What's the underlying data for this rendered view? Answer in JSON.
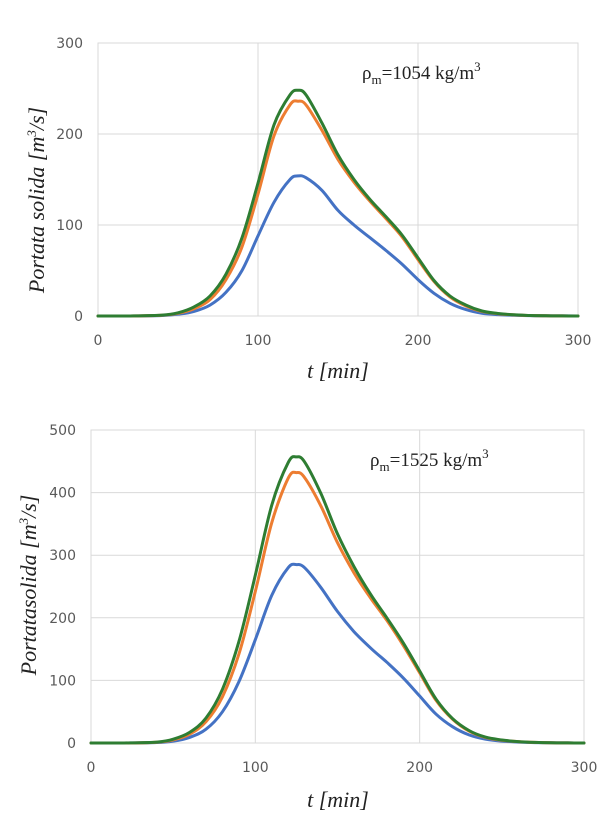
{
  "chart_data": [
    {
      "type": "line",
      "annotation": {
        "rho": "ρ",
        "sub": "m",
        "text": "=1054 kg/m",
        "sup": "3"
      },
      "xlabel": "t [min]",
      "ylabel": {
        "main": "Portata solida [m",
        "sup": "3",
        "tail": "/s]"
      },
      "xlim": [
        0,
        300
      ],
      "ylim": [
        0,
        300
      ],
      "xticks": [
        "0",
        "100",
        "200",
        "300"
      ],
      "yticks": [
        "0",
        "100",
        "200",
        "300"
      ],
      "grid": true,
      "legend": "none",
      "x": [
        0,
        20,
        40,
        50,
        60,
        70,
        80,
        90,
        100,
        110,
        120,
        125,
        130,
        140,
        150,
        160,
        170,
        180,
        190,
        200,
        210,
        220,
        230,
        240,
        250,
        260,
        270,
        280,
        290,
        300
      ],
      "series": [
        {
          "name": "blue",
          "color": "#4472c4",
          "values": [
            0,
            0,
            0.5,
            2,
            5,
            12,
            26,
            50,
            88,
            125,
            150,
            154,
            152,
            138,
            116,
            100,
            86,
            72,
            57,
            40,
            25,
            14,
            7,
            3,
            1.5,
            0.8,
            0.4,
            0.2,
            0.1,
            0
          ]
        },
        {
          "name": "orange",
          "color": "#ed7d31",
          "values": [
            0,
            0,
            0.8,
            3,
            8,
            18,
            40,
            76,
            134,
            198,
            232,
            236,
            232,
            204,
            172,
            147,
            126,
            107,
            87,
            62,
            38,
            21,
            11,
            5,
            2.5,
            1.2,
            0.6,
            0.3,
            0.1,
            0
          ]
        },
        {
          "name": "green",
          "color": "#2e7d32",
          "values": [
            0,
            0,
            1,
            3.5,
            10,
            22,
            46,
            86,
            146,
            210,
            243,
            248,
            243,
            212,
            177,
            150,
            128,
            109,
            89,
            64,
            39,
            22,
            12,
            5.5,
            2.8,
            1.3,
            0.6,
            0.3,
            0.1,
            0
          ]
        }
      ]
    },
    {
      "type": "line",
      "annotation": {
        "rho": "ρ",
        "sub": "m",
        "text": "=1525 kg/m",
        "sup": "3"
      },
      "xlabel": "t [min]",
      "ylabel": {
        "main": "Portatasolida [m",
        "sup": "3",
        "tail": "/s]"
      },
      "xlim": [
        0,
        300
      ],
      "ylim": [
        0,
        500
      ],
      "xticks": [
        "0",
        "100",
        "200",
        "300"
      ],
      "yticks": [
        "0",
        "100",
        "200",
        "300",
        "400",
        "500"
      ],
      "grid": true,
      "legend": "none",
      "x": [
        0,
        20,
        40,
        50,
        60,
        70,
        80,
        90,
        100,
        110,
        120,
        125,
        130,
        140,
        150,
        160,
        170,
        180,
        190,
        200,
        210,
        220,
        230,
        240,
        250,
        260,
        270,
        280,
        290,
        300
      ],
      "series": [
        {
          "name": "blue",
          "color": "#4472c4",
          "values": [
            0,
            0,
            0.8,
            3,
            9,
            22,
            50,
            98,
            165,
            236,
            280,
            285,
            280,
            248,
            210,
            178,
            152,
            129,
            104,
            75,
            46,
            26,
            13,
            6,
            3,
            1.5,
            0.7,
            0.3,
            0.1,
            0
          ]
        },
        {
          "name": "orange",
          "color": "#ed7d31",
          "values": [
            0,
            0,
            1.2,
            5,
            14,
            34,
            74,
            142,
            242,
            352,
            423,
            432,
            424,
            378,
            320,
            272,
            232,
            196,
            156,
            112,
            68,
            38,
            19,
            9,
            4.5,
            2.2,
            1,
            0.4,
            0.1,
            0
          ]
        },
        {
          "name": "green",
          "color": "#2e7d32",
          "values": [
            0,
            0,
            1.5,
            6,
            17,
            40,
            86,
            162,
            268,
            380,
            448,
            457,
            449,
            398,
            334,
            282,
            238,
            200,
            160,
            115,
            70,
            39,
            20,
            9.5,
            4.8,
            2.3,
            1,
            0.4,
            0.1,
            0
          ]
        }
      ]
    }
  ]
}
